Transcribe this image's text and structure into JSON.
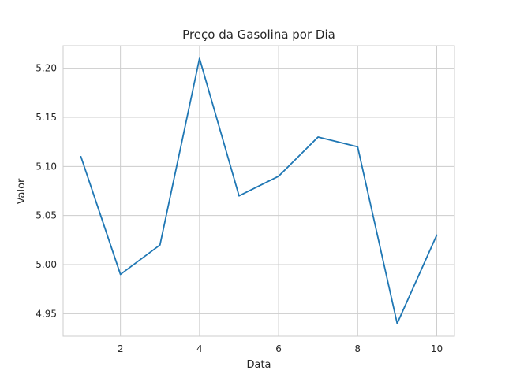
{
  "chart_data": {
    "type": "line",
    "title": "Preço da Gasolina por Dia",
    "xlabel": "Data",
    "ylabel": "Valor",
    "x": [
      1,
      2,
      3,
      4,
      5,
      6,
      7,
      8,
      9,
      10
    ],
    "series": [
      {
        "values": [
          5.11,
          4.99,
          5.02,
          5.21,
          5.07,
          5.09,
          5.13,
          5.12,
          4.94,
          5.03
        ]
      }
    ],
    "xlim": [
      0.55,
      10.45
    ],
    "ylim": [
      4.927,
      5.223
    ],
    "xticks": [
      2,
      4,
      6,
      8,
      10
    ],
    "xtick_labels": [
      "2",
      "4",
      "6",
      "8",
      "10"
    ],
    "yticks": [
      4.95,
      5.0,
      5.05,
      5.1,
      5.15,
      5.2
    ],
    "ytick_labels": [
      "4.95",
      "5.00",
      "5.05",
      "5.10",
      "5.15",
      "5.20"
    ],
    "grid": true,
    "colors": {
      "line": "#1f77b4",
      "grid": "#cccccc",
      "text": "#262626"
    }
  }
}
